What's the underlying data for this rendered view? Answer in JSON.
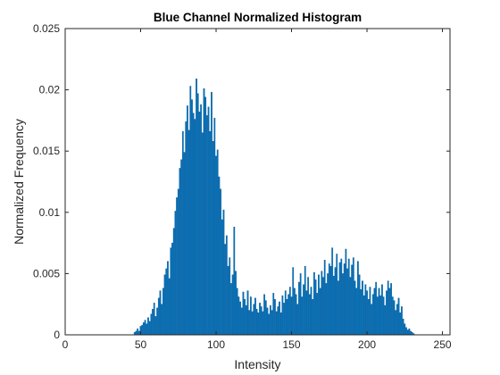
{
  "chart_data": {
    "type": "bar",
    "title": "Blue Channel Normalized Histogram",
    "xlabel": "Intensity",
    "ylabel": "Normalized Frequency",
    "xlim": [
      0,
      255
    ],
    "ylim": [
      0,
      0.025
    ],
    "xticks": [
      "0",
      "50",
      "100",
      "150",
      "200",
      "250"
    ],
    "yticks": [
      "0",
      "0.005",
      "0.01",
      "0.015",
      "0.02",
      "0.025"
    ],
    "grid": false,
    "legend": "none",
    "bar_color": "#0072BD",
    "bar_edge_color": "#0a5a96",
    "series": [
      {
        "x_start": 46,
        "values": [
          0.0002,
          0.0003,
          0.0005,
          0.0003,
          0.0007,
          0.0008,
          0.001,
          0.0012,
          0.0009,
          0.0014,
          0.0011,
          0.0017,
          0.0021,
          0.0026,
          0.0015,
          0.0022,
          0.003,
          0.0036,
          0.0025,
          0.0038,
          0.0049,
          0.0054,
          0.006,
          0.0046,
          0.0071,
          0.0075,
          0.0087,
          0.0101,
          0.0112,
          0.0119,
          0.0136,
          0.0143,
          0.0166,
          0.0149,
          0.0174,
          0.0187,
          0.0167,
          0.0203,
          0.0192,
          0.0181,
          0.0176,
          0.0209,
          0.0197,
          0.0182,
          0.0188,
          0.0165,
          0.0201,
          0.0194,
          0.0179,
          0.0186,
          0.0166,
          0.0198,
          0.0158,
          0.0177,
          0.0146,
          0.0151,
          0.0129,
          0.0119,
          0.0094,
          0.0102,
          0.0074,
          0.0081,
          0.0056,
          0.0063,
          0.0042,
          0.0049,
          0.0088,
          0.0052,
          0.0038,
          0.0031,
          0.0027,
          0.0022,
          0.0035,
          0.0029,
          0.0024,
          0.0036,
          0.002,
          0.0031,
          0.0019,
          0.0025,
          0.003,
          0.0021,
          0.0018,
          0.0026,
          0.0023,
          0.0019,
          0.0033,
          0.0028,
          0.0022,
          0.0017,
          0.0024,
          0.002,
          0.0034,
          0.0029,
          0.0019,
          0.0023,
          0.0027,
          0.0018,
          0.0032,
          0.0026,
          0.0036,
          0.0029,
          0.0033,
          0.0039,
          0.0031,
          0.0055,
          0.0038,
          0.0033,
          0.0025,
          0.0043,
          0.005,
          0.0031,
          0.0041,
          0.0056,
          0.0036,
          0.0047,
          0.0033,
          0.0039,
          0.0029,
          0.0051,
          0.0045,
          0.0034,
          0.0049,
          0.0038,
          0.0052,
          0.0047,
          0.0061,
          0.0042,
          0.005,
          0.0058,
          0.0056,
          0.0071,
          0.0048,
          0.0055,
          0.0066,
          0.0044,
          0.0059,
          0.0062,
          0.005,
          0.0058,
          0.007,
          0.0054,
          0.0062,
          0.0047,
          0.0057,
          0.0063,
          0.0044,
          0.0038,
          0.006,
          0.0049,
          0.0037,
          0.0044,
          0.0032,
          0.0041,
          0.0036,
          0.0029,
          0.0039,
          0.0025,
          0.0033,
          0.0038,
          0.0043,
          0.0031,
          0.0038,
          0.0032,
          0.0041,
          0.0031,
          0.0024,
          0.0036,
          0.0044,
          0.0038,
          0.0042,
          0.0031,
          0.0028,
          0.002,
          0.0025,
          0.003,
          0.0018,
          0.0023,
          0.0013,
          0.0009,
          0.0006,
          0.0004,
          0.0005,
          0.0003,
          0.0002,
          0.0001
        ]
      }
    ]
  }
}
